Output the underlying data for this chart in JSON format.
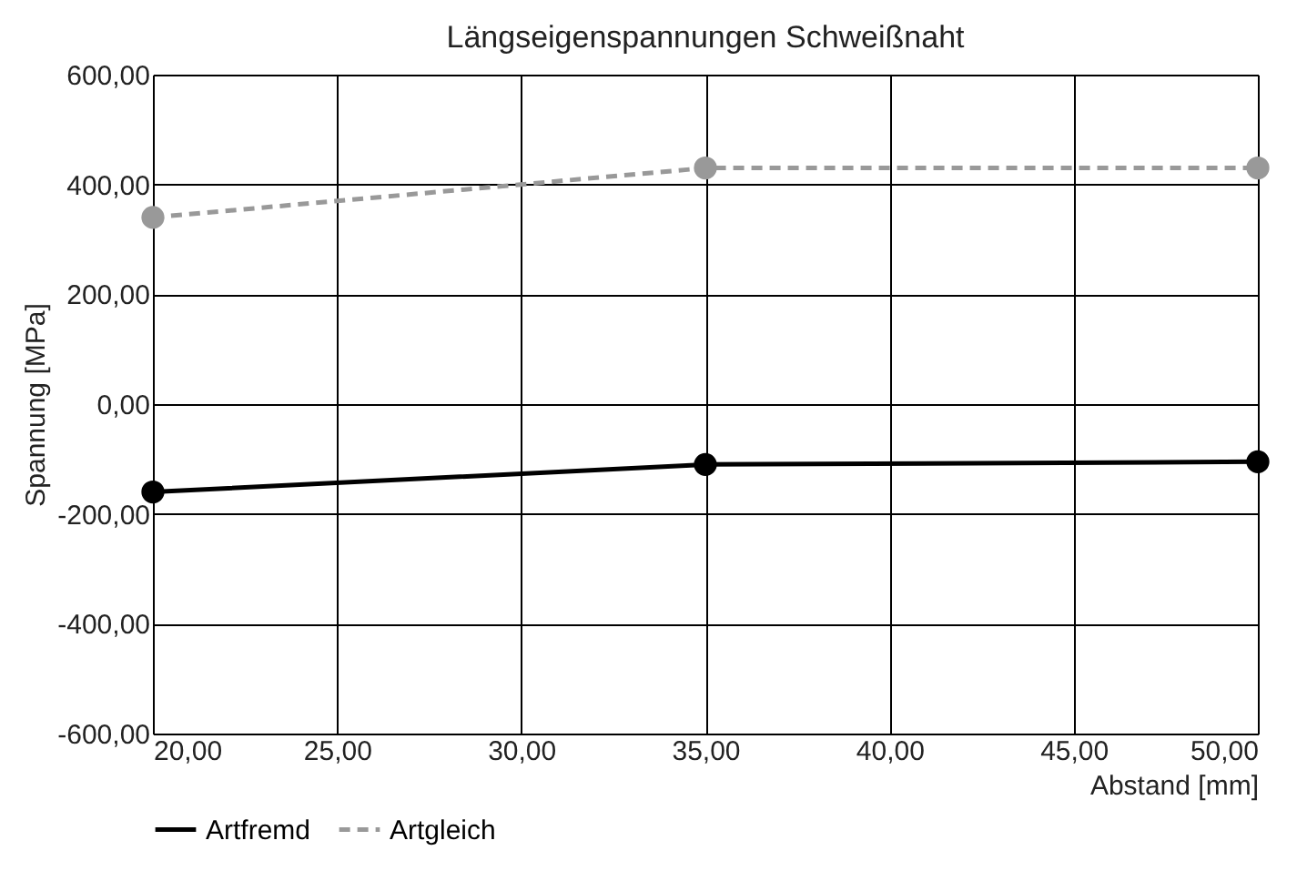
{
  "chart_data": {
    "type": "line",
    "title": "Längseigenspannungen Schweißnaht",
    "xlabel": "Abstand [mm]",
    "ylabel": "Spannung [MPa]",
    "x": [
      20,
      35,
      50
    ],
    "series": [
      {
        "name": "Artfremd",
        "color": "#000000",
        "values": [
          -160,
          -110,
          -105
        ],
        "line_style": "solid"
      },
      {
        "name": "Artgleich",
        "color": "#999999",
        "values": [
          340,
          430,
          430
        ],
        "line_style": "dashed"
      }
    ],
    "xlim": [
      20,
      50
    ],
    "xticks": [
      {
        "value": 20,
        "label": "20,00"
      },
      {
        "value": 25,
        "label": "25,00"
      },
      {
        "value": 30,
        "label": "30,00"
      },
      {
        "value": 35,
        "label": "35,00"
      },
      {
        "value": 40,
        "label": "40,00"
      },
      {
        "value": 45,
        "label": "45,00"
      },
      {
        "value": 50,
        "label": "50,00"
      }
    ],
    "ylim": [
      -600,
      600
    ],
    "yticks": [
      {
        "value": -600,
        "label": "-600,00"
      },
      {
        "value": -400,
        "label": "-400,00"
      },
      {
        "value": -200,
        "label": "-200,00"
      },
      {
        "value": 0,
        "label": "0,00"
      },
      {
        "value": 200,
        "label": "200,00"
      },
      {
        "value": 400,
        "label": "400,00"
      },
      {
        "value": 600,
        "label": "600,00"
      }
    ],
    "grid": true,
    "legend": "bottom left",
    "marker": "circle"
  }
}
